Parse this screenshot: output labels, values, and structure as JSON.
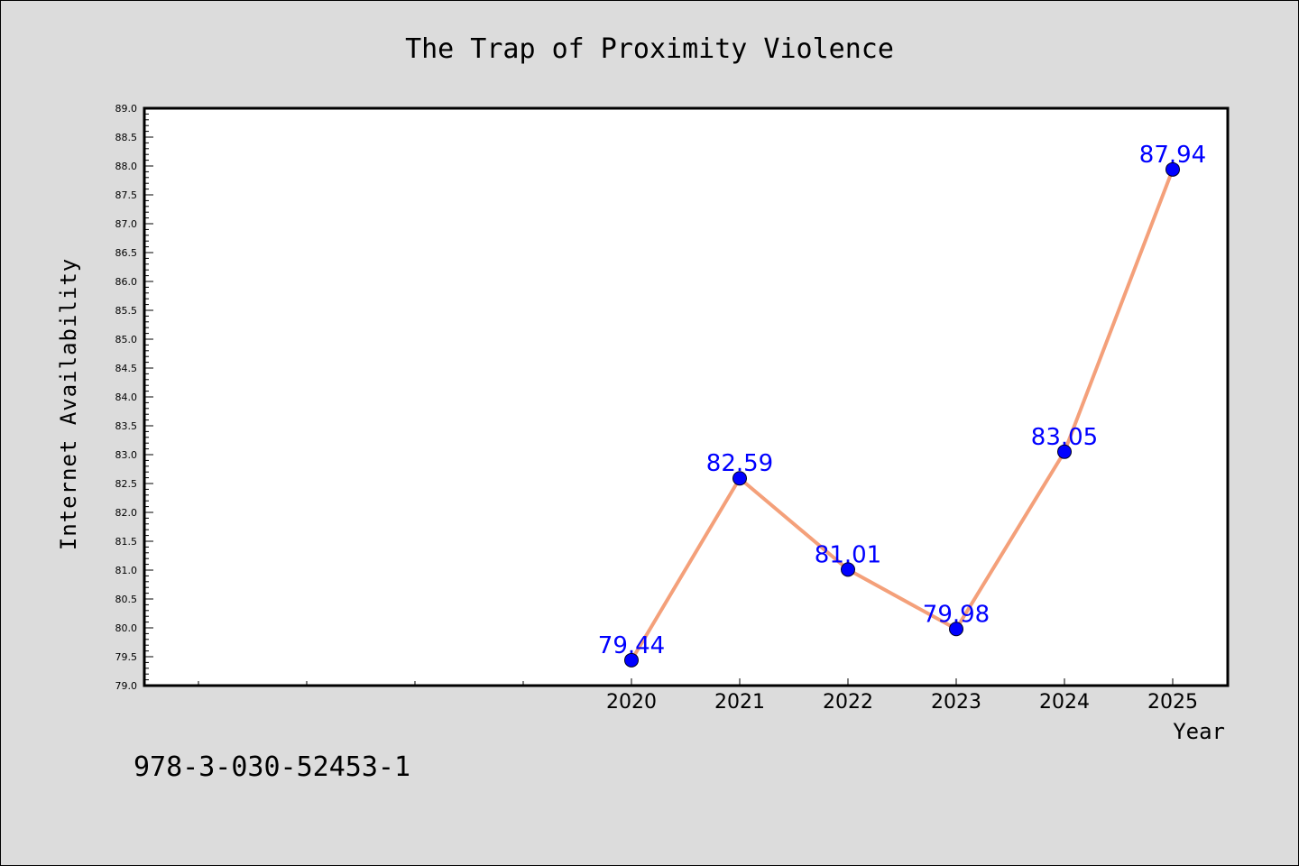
{
  "chart_data": {
    "type": "line",
    "title": "The Trap of Proximity Violence",
    "xlabel": "Year",
    "ylabel": "Internet Availability",
    "categories": [
      "2020",
      "2021",
      "2022",
      "2023",
      "2024",
      "2025"
    ],
    "values": [
      79.44,
      82.59,
      81.01,
      79.98,
      83.05,
      87.94
    ],
    "data_labels": [
      "79.44",
      "82.59",
      "81.01",
      "79.98",
      "83.05",
      "87.94"
    ],
    "ylim": [
      79.0,
      89.0
    ],
    "ytick_step": 0.5,
    "yticks": [
      "79.0",
      "79.5",
      "80.0",
      "80.5",
      "81.0",
      "81.5",
      "82.0",
      "82.5",
      "83.0",
      "83.5",
      "84.0",
      "84.5",
      "85.0",
      "85.5",
      "86.0",
      "86.5",
      "87.0",
      "87.5",
      "88.0",
      "88.5",
      "89.0"
    ],
    "grid": false,
    "line_color": "#f4a07a",
    "marker_color": "#0000ff",
    "label_color": "#0000ff"
  },
  "footnote": "978-3-030-52453-1"
}
